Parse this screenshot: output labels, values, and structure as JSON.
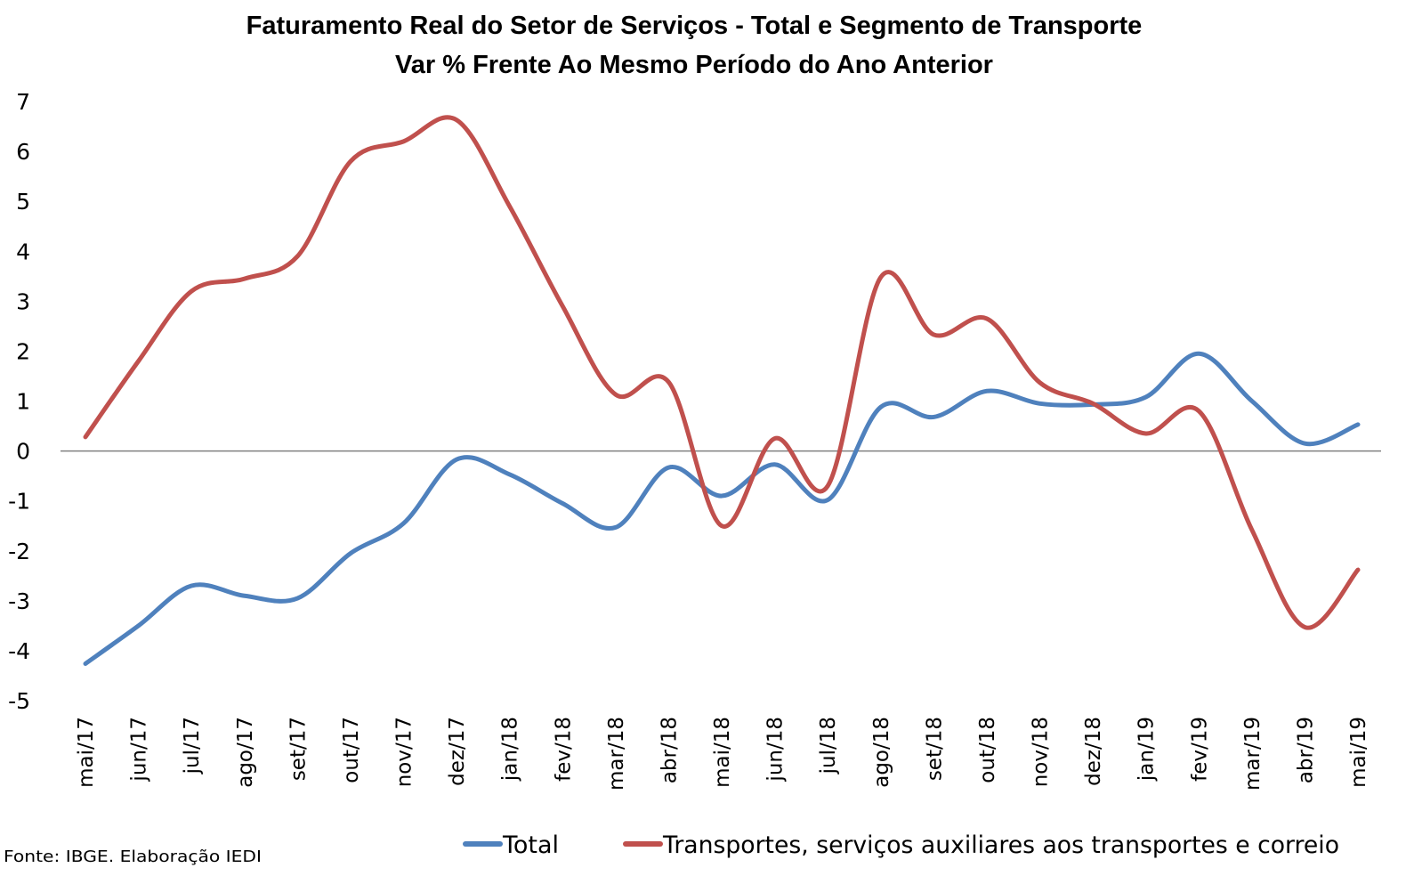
{
  "chart_data": {
    "type": "line",
    "title": "Faturamento Real do Setor de Serviços - Total e Segmento de Transporte",
    "subtitle": "Var % Frente Ao Mesmo Período do Ano Anterior",
    "xlabel": "",
    "ylabel": "",
    "ylim": [
      -5,
      7
    ],
    "yticks": [
      "7",
      "6",
      "5",
      "4",
      "3",
      "2",
      "1",
      "0",
      "-1",
      "-2",
      "-3",
      "-4",
      "-5"
    ],
    "grid": false,
    "smoothed": true,
    "legend_position": "bottom",
    "categories": [
      "mai/17",
      "jun/17",
      "jul/17",
      "ago/17",
      "set/17",
      "out/17",
      "nov/17",
      "dez/17",
      "jan/18",
      "fev/18",
      "mar/18",
      "abr/18",
      "mai/18",
      "jun/18",
      "jul/18",
      "ago/18",
      "set/18",
      "out/18",
      "nov/18",
      "dez/18",
      "jan/19",
      "fev/19",
      "mar/19",
      "abr/19",
      "mai/19"
    ],
    "series": [
      {
        "name": "Total",
        "color": "#4f81bd",
        "values": [
          -4.26,
          -3.5,
          -2.7,
          -2.9,
          -2.95,
          -2.05,
          -1.45,
          -0.17,
          -0.47,
          -1.05,
          -1.53,
          -0.33,
          -0.9,
          -0.27,
          -0.98,
          0.88,
          0.68,
          1.2,
          0.95,
          0.93,
          1.08,
          1.95,
          1.0,
          0.15,
          0.53
        ]
      },
      {
        "name": "Transportes, serviços auxiliares aos transportes e correio",
        "color": "#c0504d",
        "values": [
          0.28,
          1.8,
          3.2,
          3.45,
          3.9,
          5.8,
          6.2,
          6.63,
          4.9,
          2.9,
          1.13,
          1.38,
          -1.5,
          0.25,
          -0.7,
          3.48,
          2.33,
          2.65,
          1.37,
          0.95,
          0.35,
          0.8,
          -1.58,
          -3.53,
          -2.38
        ]
      }
    ],
    "source": "Fonte: IBGE. Elaboração IEDI"
  }
}
